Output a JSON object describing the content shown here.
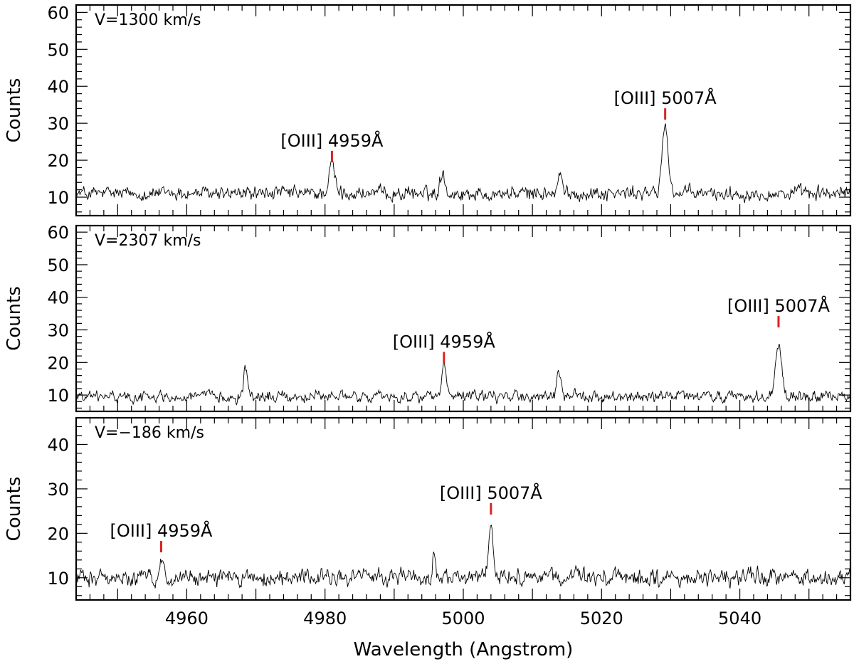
{
  "chart_data": [
    {
      "type": "line",
      "annotation": "V=1300 km/s",
      "ylabel": "Counts",
      "xlabel": "",
      "xlim": [
        4944,
        5056
      ],
      "ylim": [
        5,
        62
      ],
      "xticks": [],
      "yticks": [
        10,
        20,
        30,
        40,
        50,
        60
      ],
      "noise_mean": 11,
      "noise_amplitude": 2.3,
      "peaks": [
        {
          "x": 4981,
          "height": 8,
          "width": 0.4
        },
        {
          "x": 5029.2,
          "height": 18,
          "width": 0.45
        },
        {
          "x": 4997,
          "height": 6,
          "width": 0.35
        },
        {
          "x": 5014,
          "height": 5,
          "width": 0.3
        }
      ],
      "emission_lines": [
        {
          "label": "[OIII] 4959Å",
          "x": 4981,
          "marker_y": 21,
          "color": "#dd2222"
        },
        {
          "label": "[OIII] 5007Å",
          "x": 5029.2,
          "marker_y": 32.5,
          "color": "#dd2222"
        }
      ]
    },
    {
      "type": "line",
      "annotation": "V=2307 km/s",
      "ylabel": "Counts",
      "xlabel": "",
      "xlim": [
        4944,
        5056
      ],
      "ylim": [
        5,
        62
      ],
      "xticks": [],
      "yticks": [
        10,
        20,
        30,
        40,
        50,
        60
      ],
      "noise_mean": 9.5,
      "noise_amplitude": 2.0,
      "peaks": [
        {
          "x": 4997.2,
          "height": 8.5,
          "width": 0.35
        },
        {
          "x": 5045.6,
          "height": 16,
          "width": 0.45
        },
        {
          "x": 4968.5,
          "height": 8,
          "width": 0.3
        },
        {
          "x": 5013.8,
          "height": 8.5,
          "width": 0.25
        }
      ],
      "emission_lines": [
        {
          "label": "[OIII] 4959Å",
          "x": 4997.2,
          "marker_y": 21.5,
          "color": "#dd2222"
        },
        {
          "label": "[OIII] 5007Å",
          "x": 5045.6,
          "marker_y": 32.5,
          "color": "#dd2222"
        }
      ]
    },
    {
      "type": "line",
      "annotation": "V=−186 km/s",
      "ylabel": "Counts",
      "xlabel": "Wavelength (Angstrom)",
      "xlim": [
        4944,
        5056
      ],
      "ylim": [
        5,
        46
      ],
      "xticks": [
        4960,
        4980,
        5000,
        5020,
        5040
      ],
      "yticks": [
        10,
        20,
        30,
        40
      ],
      "noise_mean": 10,
      "noise_amplitude": 2.3,
      "peaks": [
        {
          "x": 4956.3,
          "height": 4,
          "width": 0.35
        },
        {
          "x": 5004,
          "height": 12,
          "width": 0.35
        },
        {
          "x": 4995.8,
          "height": 5,
          "width": 0.25
        }
      ],
      "emission_lines": [
        {
          "label": "[OIII] 4959Å",
          "x": 4956.3,
          "marker_y": 17,
          "color": "#dd2222"
        },
        {
          "label": "[OIII] 5007Å",
          "x": 5004,
          "marker_y": 25.5,
          "color": "#dd2222"
        }
      ]
    }
  ]
}
